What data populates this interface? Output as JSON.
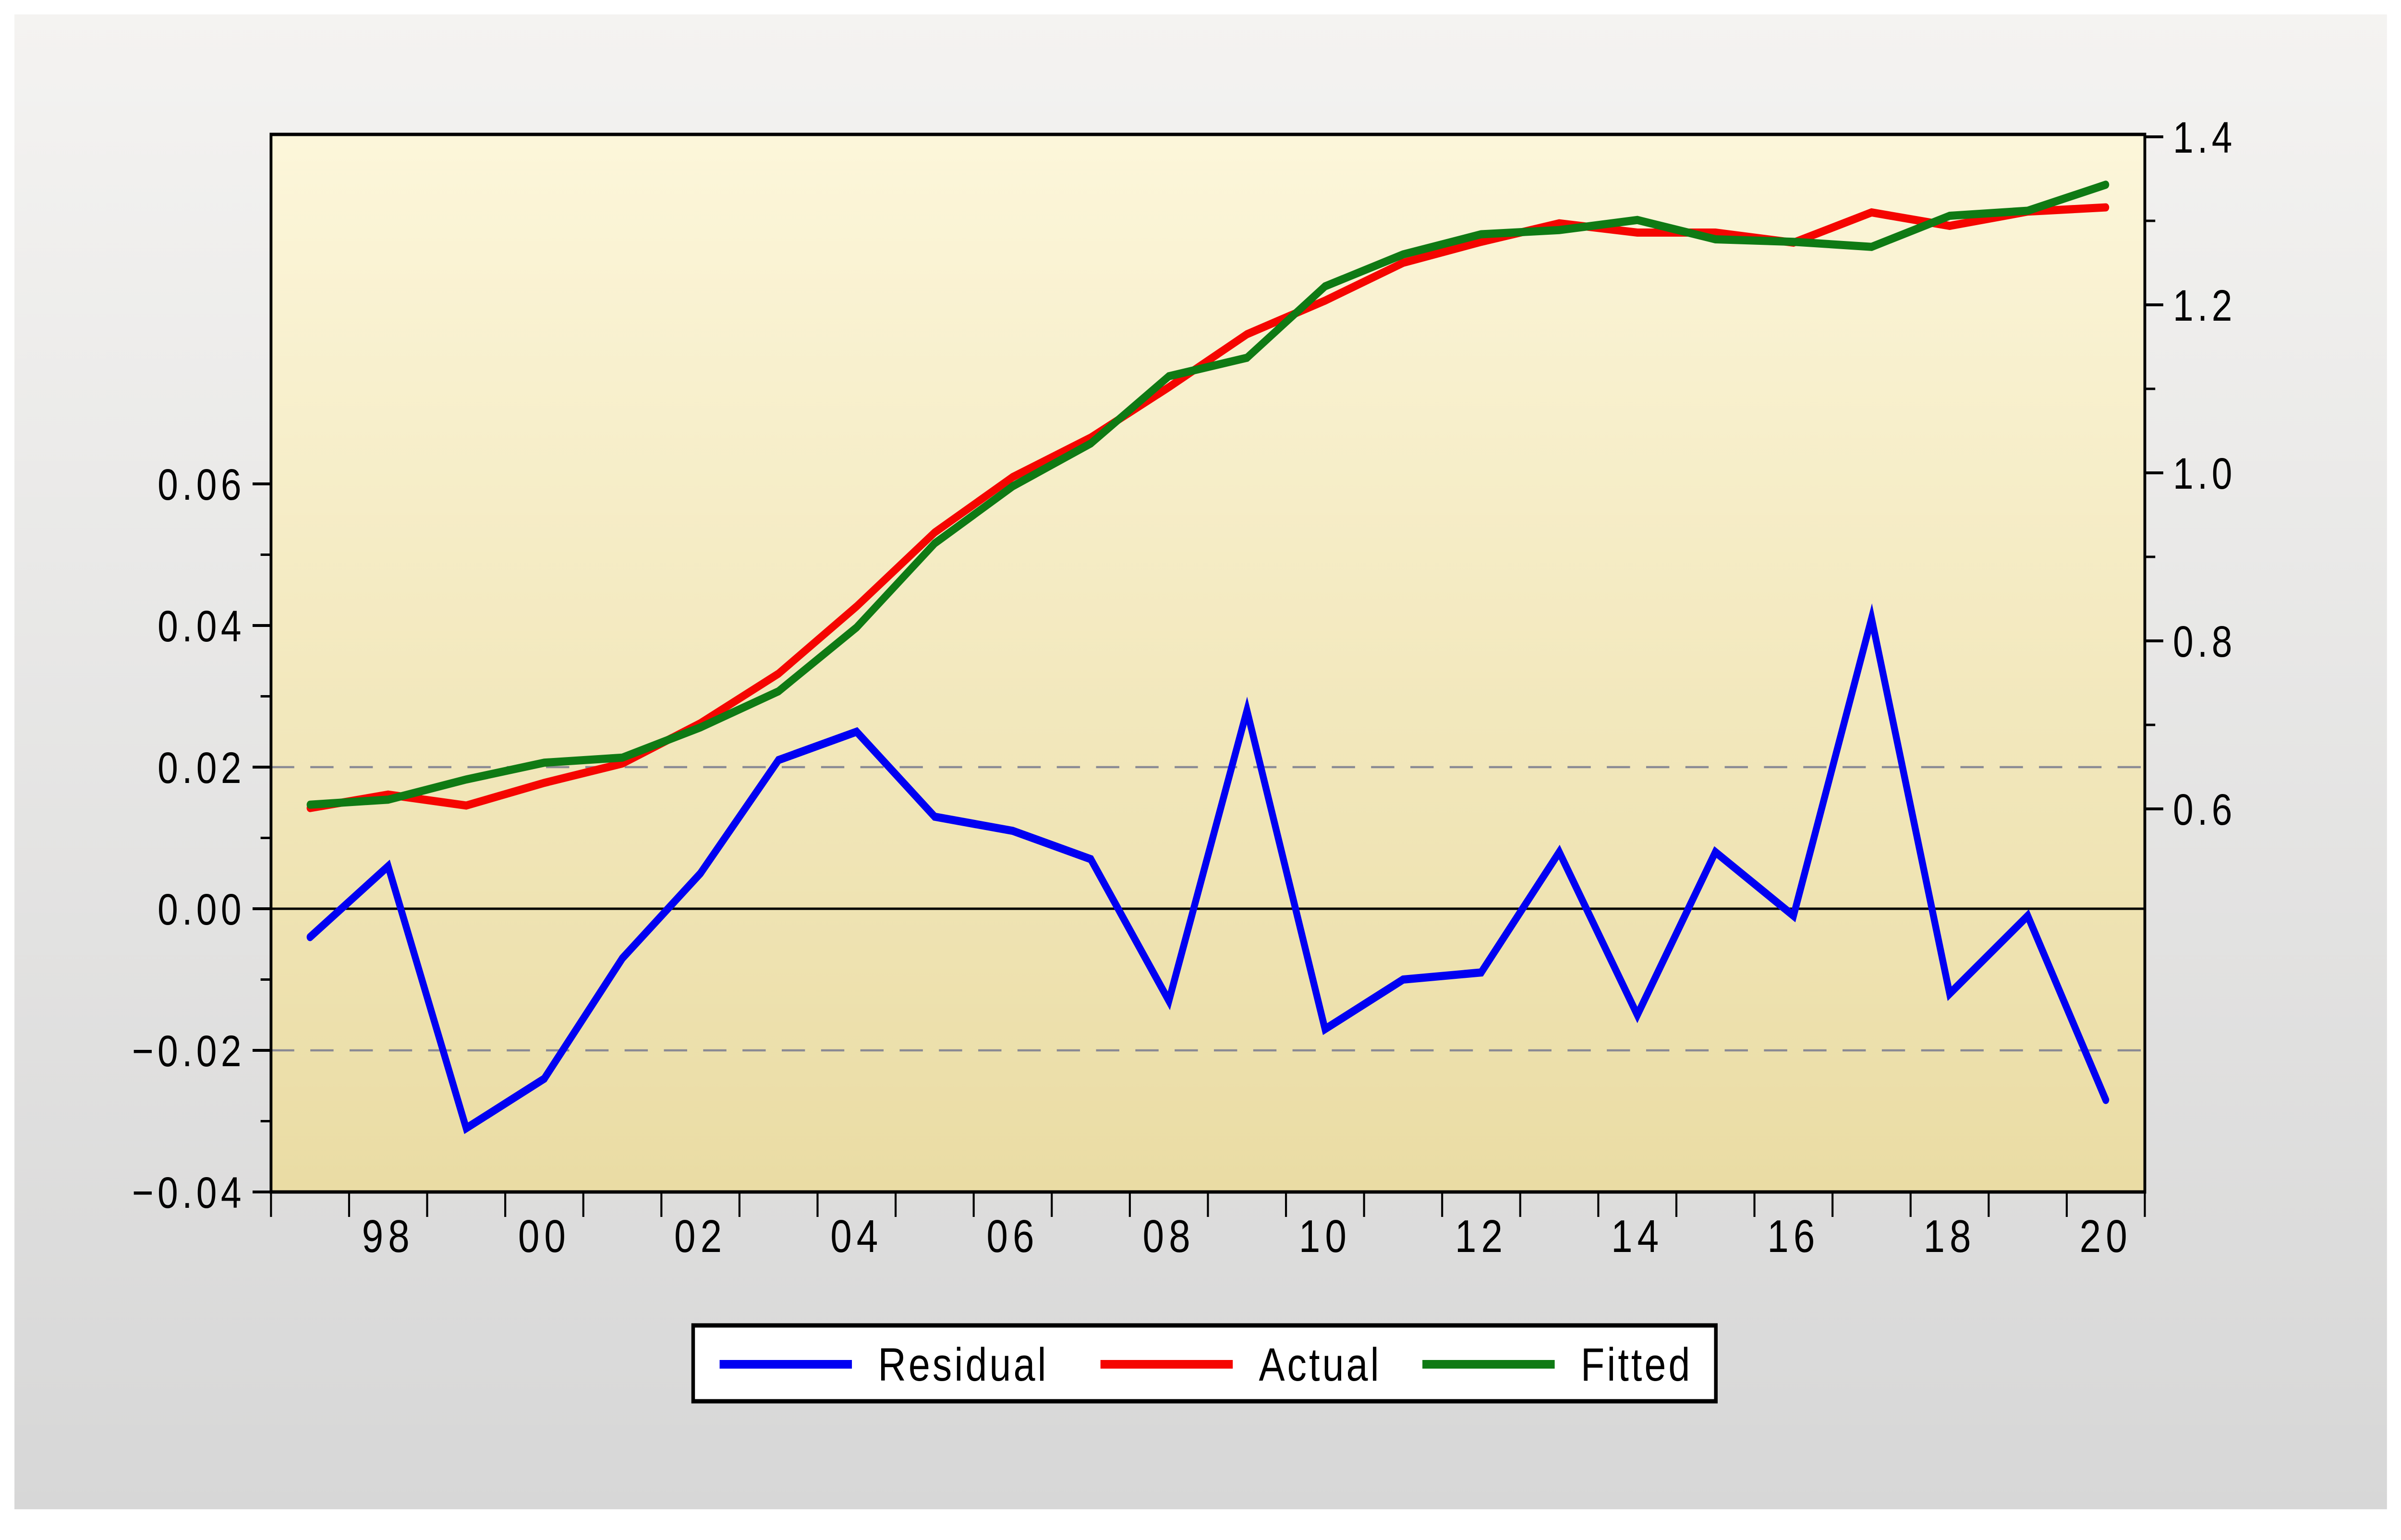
{
  "chart_data": {
    "type": "line",
    "title": "",
    "description": "EViews-style Residual / Actual / Fitted annual plot, 1997-2020",
    "x": [
      1997,
      1998,
      1999,
      2000,
      2001,
      2002,
      2003,
      2004,
      2005,
      2006,
      2007,
      2008,
      2009,
      2010,
      2011,
      2012,
      2013,
      2014,
      2015,
      2016,
      2017,
      2018,
      2019,
      2020
    ],
    "x_tick_labels": [
      {
        "label": "98",
        "year": 1998
      },
      {
        "label": "00",
        "year": 2000
      },
      {
        "label": "02",
        "year": 2002
      },
      {
        "label": "04",
        "year": 2004
      },
      {
        "label": "06",
        "year": 2006
      },
      {
        "label": "08",
        "year": 2008
      },
      {
        "label": "10",
        "year": 2010
      },
      {
        "label": "12",
        "year": 2012
      },
      {
        "label": "14",
        "year": 2014
      },
      {
        "label": "16",
        "year": 2016
      },
      {
        "label": "18",
        "year": 2018
      },
      {
        "label": "20",
        "year": 2020
      }
    ],
    "series": [
      {
        "name": "Residual",
        "axis": "left",
        "color": "#0000F2",
        "values": [
          -0.004,
          0.006,
          -0.031,
          -0.024,
          -0.007,
          0.005,
          0.021,
          0.025,
          0.013,
          0.011,
          0.007,
          -0.013,
          0.028,
          -0.017,
          -0.01,
          -0.009,
          0.008,
          -0.015,
          0.008,
          -0.001,
          0.041,
          -0.012,
          -0.001,
          -0.027
        ]
      },
      {
        "name": "Actual",
        "axis": "right",
        "color": "#F50500",
        "values": [
          0.601,
          0.617,
          0.604,
          0.631,
          0.654,
          0.702,
          0.761,
          0.841,
          0.929,
          0.995,
          1.042,
          1.102,
          1.165,
          1.205,
          1.25,
          1.275,
          1.297,
          1.286,
          1.286,
          1.274,
          1.31,
          1.294,
          1.311,
          1.316
        ]
      },
      {
        "name": "Fitted",
        "axis": "right",
        "color": "#0F7A14",
        "values": [
          0.605,
          0.611,
          0.635,
          0.655,
          0.661,
          0.697,
          0.74,
          0.816,
          0.916,
          0.984,
          1.035,
          1.115,
          1.137,
          1.222,
          1.26,
          1.284,
          1.289,
          1.301,
          1.278,
          1.275,
          1.269,
          1.306,
          1.312,
          1.343
        ]
      }
    ],
    "left_axis": {
      "ticks": [
        "0.06",
        "0.04",
        "0.02",
        "0.00",
        "−0.02",
        "−0.04"
      ],
      "tick_values": [
        0.06,
        0.04,
        0.02,
        0.0,
        -0.02,
        -0.04
      ],
      "minor_tick_values": [
        0.05,
        0.03,
        0.01,
        -0.01,
        -0.03
      ],
      "gridline_values": [
        0.02,
        -0.02
      ],
      "zero_line": true
    },
    "right_axis": {
      "ticks": [
        "1.4",
        "1.2",
        "1.0",
        "0.8",
        "0.6"
      ],
      "tick_values": [
        1.4,
        1.2,
        1.0,
        0.8,
        0.6
      ],
      "minor_tick_values": [
        1.3,
        1.1,
        0.9,
        0.7
      ]
    },
    "legend": {
      "position": "bottom-center",
      "entries": [
        "Residual",
        "Actual",
        "Fitted"
      ]
    },
    "colors": {
      "plot_bg_top": "#FCF6DA",
      "plot_bg_bottom": "#EADCA4",
      "panel_bg_top": "#F4F3F1",
      "panel_bg_bottom": "#D7D7D7",
      "gridline": "#8A8A94",
      "axis": "#000000",
      "legend_bg": "#FFFFFF"
    }
  }
}
